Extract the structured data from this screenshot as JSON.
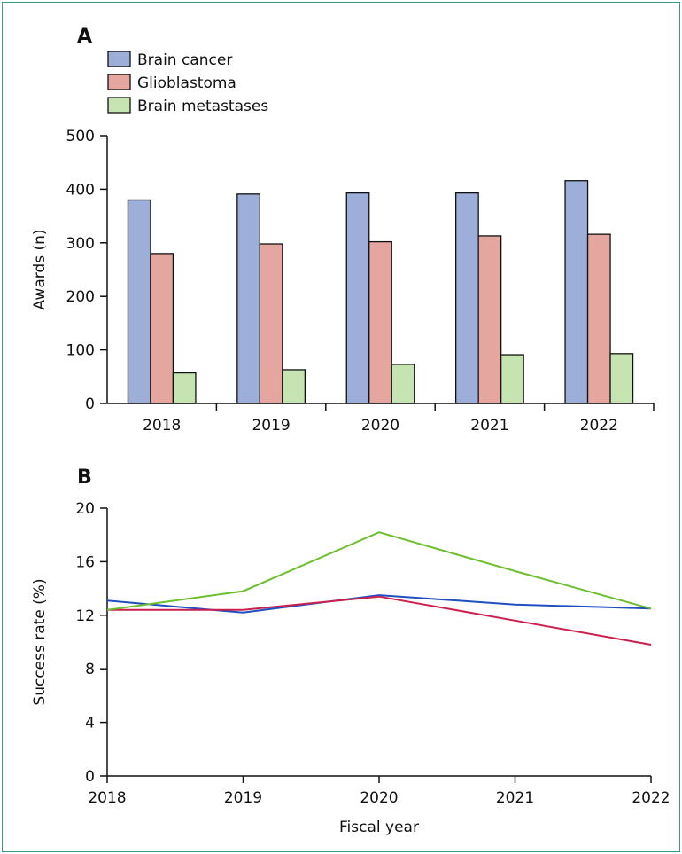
{
  "chart_data": [
    {
      "panel_label": "A",
      "type": "bar",
      "categories": [
        "2018",
        "2019",
        "2020",
        "2021",
        "2022"
      ],
      "series": [
        {
          "name": "Brain cancer",
          "color": "#9dafd8",
          "values": [
            380,
            391,
            393,
            393,
            416
          ]
        },
        {
          "name": "Glioblastoma",
          "color": "#e4a69f",
          "values": [
            280,
            298,
            302,
            313,
            316
          ]
        },
        {
          "name": "Brain metastases",
          "color": "#c6e4b2",
          "values": [
            57,
            63,
            73,
            91,
            93
          ]
        }
      ],
      "ylabel": "Awards (n)",
      "ylim": [
        0,
        500
      ],
      "yticks": [
        0,
        100,
        200,
        300,
        400,
        500
      ],
      "legend": "top-left",
      "grid": false
    },
    {
      "panel_label": "B",
      "type": "line",
      "x": [
        "2018",
        "2019",
        "2020",
        "2021",
        "2022"
      ],
      "series": [
        {
          "color": "#1f4fbf",
          "values": [
            13.1,
            12.2,
            13.5,
            12.8,
            12.5
          ]
        },
        {
          "color": "#cc1f4d",
          "values": [
            12.4,
            12.4,
            13.4,
            11.6,
            9.8
          ]
        },
        {
          "color": "#6cbf2e",
          "values": [
            12.4,
            13.8,
            18.2,
            15.3,
            12.5
          ]
        }
      ],
      "xlabel": "Fiscal year",
      "ylabel": "Success rate (%)",
      "ylim": [
        0,
        20
      ],
      "yticks": [
        0,
        4,
        8,
        12,
        16,
        20
      ],
      "grid": false
    }
  ]
}
